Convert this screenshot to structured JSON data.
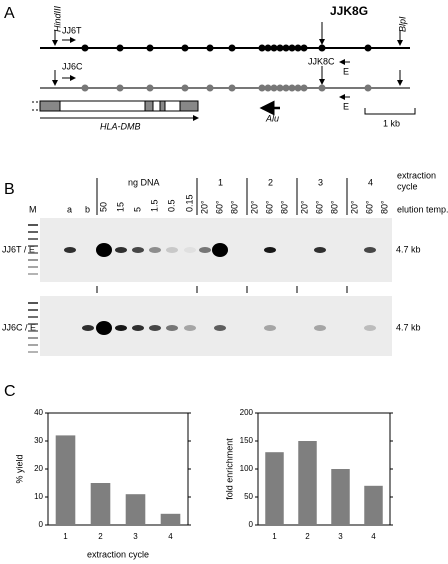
{
  "panel_labels": [
    "A",
    "B",
    "C"
  ],
  "map": {
    "title": "JJK8G",
    "sites": [
      "HindIII",
      "BlpI"
    ],
    "primers_top": [
      "JJ6T",
      "E"
    ],
    "primers_bottom": [
      "JJ6C",
      "JJK8C",
      "E"
    ],
    "gene": "HLA-DMB",
    "repeat": "Alu",
    "scale": "1 kb"
  },
  "gel": {
    "ng_label": "ng DNA",
    "cycle_label": [
      "extraction",
      "cycle"
    ],
    "elution_label": "elution temp.",
    "marker": "M",
    "lanes_ab": [
      "a",
      "b"
    ],
    "ng_values": [
      "50",
      "15",
      "5",
      "1.5",
      "0.5",
      "0.15"
    ],
    "cycles": [
      "1",
      "2",
      "3",
      "4"
    ],
    "temps": [
      "20°",
      "60°",
      "80°"
    ],
    "row_labels": [
      "JJ6T / E",
      "JJ6C / E"
    ],
    "band_size": "4.7 kb"
  },
  "chart_data": [
    {
      "type": "bar",
      "ylabel": "% yield",
      "xlabel": "extraction cycle",
      "categories": [
        "1",
        "2",
        "3",
        "4"
      ],
      "values": [
        32,
        15,
        11,
        4
      ],
      "color": "#7f7f7f",
      "ylim": [
        0,
        40
      ],
      "yticks": [
        0,
        10,
        20,
        30,
        40
      ]
    },
    {
      "type": "bar",
      "ylabel": "fold enrichment",
      "categories": [
        "1",
        "2",
        "3",
        "4"
      ],
      "values": [
        130,
        150,
        100,
        70
      ],
      "color": "#7f7f7f",
      "ylim": [
        0,
        200
      ],
      "yticks": [
        0,
        50,
        100,
        150,
        200
      ]
    }
  ]
}
